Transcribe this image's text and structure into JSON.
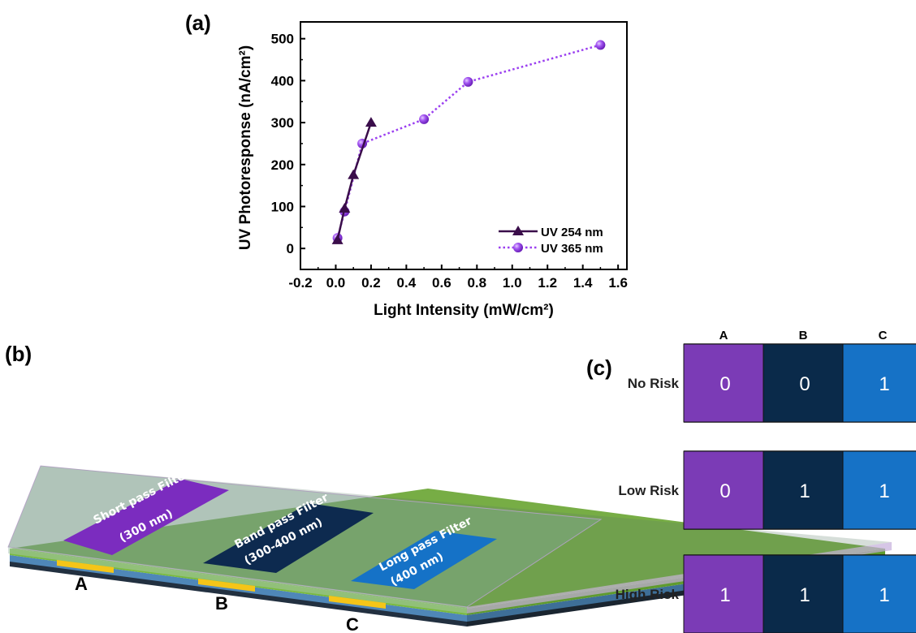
{
  "panels": {
    "a": "(a)",
    "b": "(b)",
    "c": "(c)"
  },
  "chart_data": {
    "type": "line",
    "xlabel": "Light Intensity (mW/cm²)",
    "ylabel": "UV Photoresponse (nA/cm²)",
    "xlim": [
      -0.2,
      1.65
    ],
    "ylim": [
      -50,
      540
    ],
    "xticks": [
      -0.2,
      0.0,
      0.2,
      0.4,
      0.6,
      0.8,
      1.0,
      1.2,
      1.4,
      1.6
    ],
    "xtick_labels": [
      "-0.2",
      "0.0",
      "0.2",
      "0.4",
      "0.6",
      "0.8",
      "1.0",
      "1.2",
      "1.4",
      "1.6"
    ],
    "yticks": [
      0,
      100,
      200,
      300,
      400,
      500
    ],
    "ytick_labels": [
      "0",
      "100",
      "200",
      "300",
      "400",
      "500"
    ],
    "grid": false,
    "legend_position": "bottom-right",
    "series": [
      {
        "name": "UV 254 nm",
        "marker": "triangle",
        "line": "solid",
        "color": "#3a0d4a",
        "x": [
          0.01,
          0.05,
          0.1,
          0.2
        ],
        "y": [
          20,
          95,
          175,
          300
        ]
      },
      {
        "name": "UV 365 nm",
        "marker": "circle",
        "line": "dotted",
        "color": "#9b3ff0",
        "x": [
          0.01,
          0.05,
          0.15,
          0.5,
          0.75,
          1.5
        ],
        "y": [
          25,
          88,
          250,
          308,
          397,
          485
        ]
      }
    ]
  },
  "device": {
    "filters": [
      {
        "line1": "Short pass Filter",
        "line2": "(300 nm)",
        "color": "#7b2cbf"
      },
      {
        "line1": "Band pass Filter",
        "line2": "(300-400 nm)",
        "color": "#0d2a4f"
      },
      {
        "line1": "Long pass Filter",
        "line2": "(400 nm)",
        "color": "#1572c7"
      }
    ],
    "electrodes": [
      "A",
      "B",
      "C"
    ]
  },
  "risk_table": {
    "columns": [
      "A",
      "B",
      "C"
    ],
    "column_colors": [
      "#7b3bb6",
      "#0a2a4a",
      "#1672c6"
    ],
    "rows": [
      {
        "label": "No Risk",
        "values": [
          "0",
          "0",
          "1"
        ]
      },
      {
        "label": "Low Risk",
        "values": [
          "0",
          "1",
          "1"
        ]
      },
      {
        "label": "High Risk",
        "values": [
          "1",
          "1",
          "1"
        ]
      }
    ]
  }
}
